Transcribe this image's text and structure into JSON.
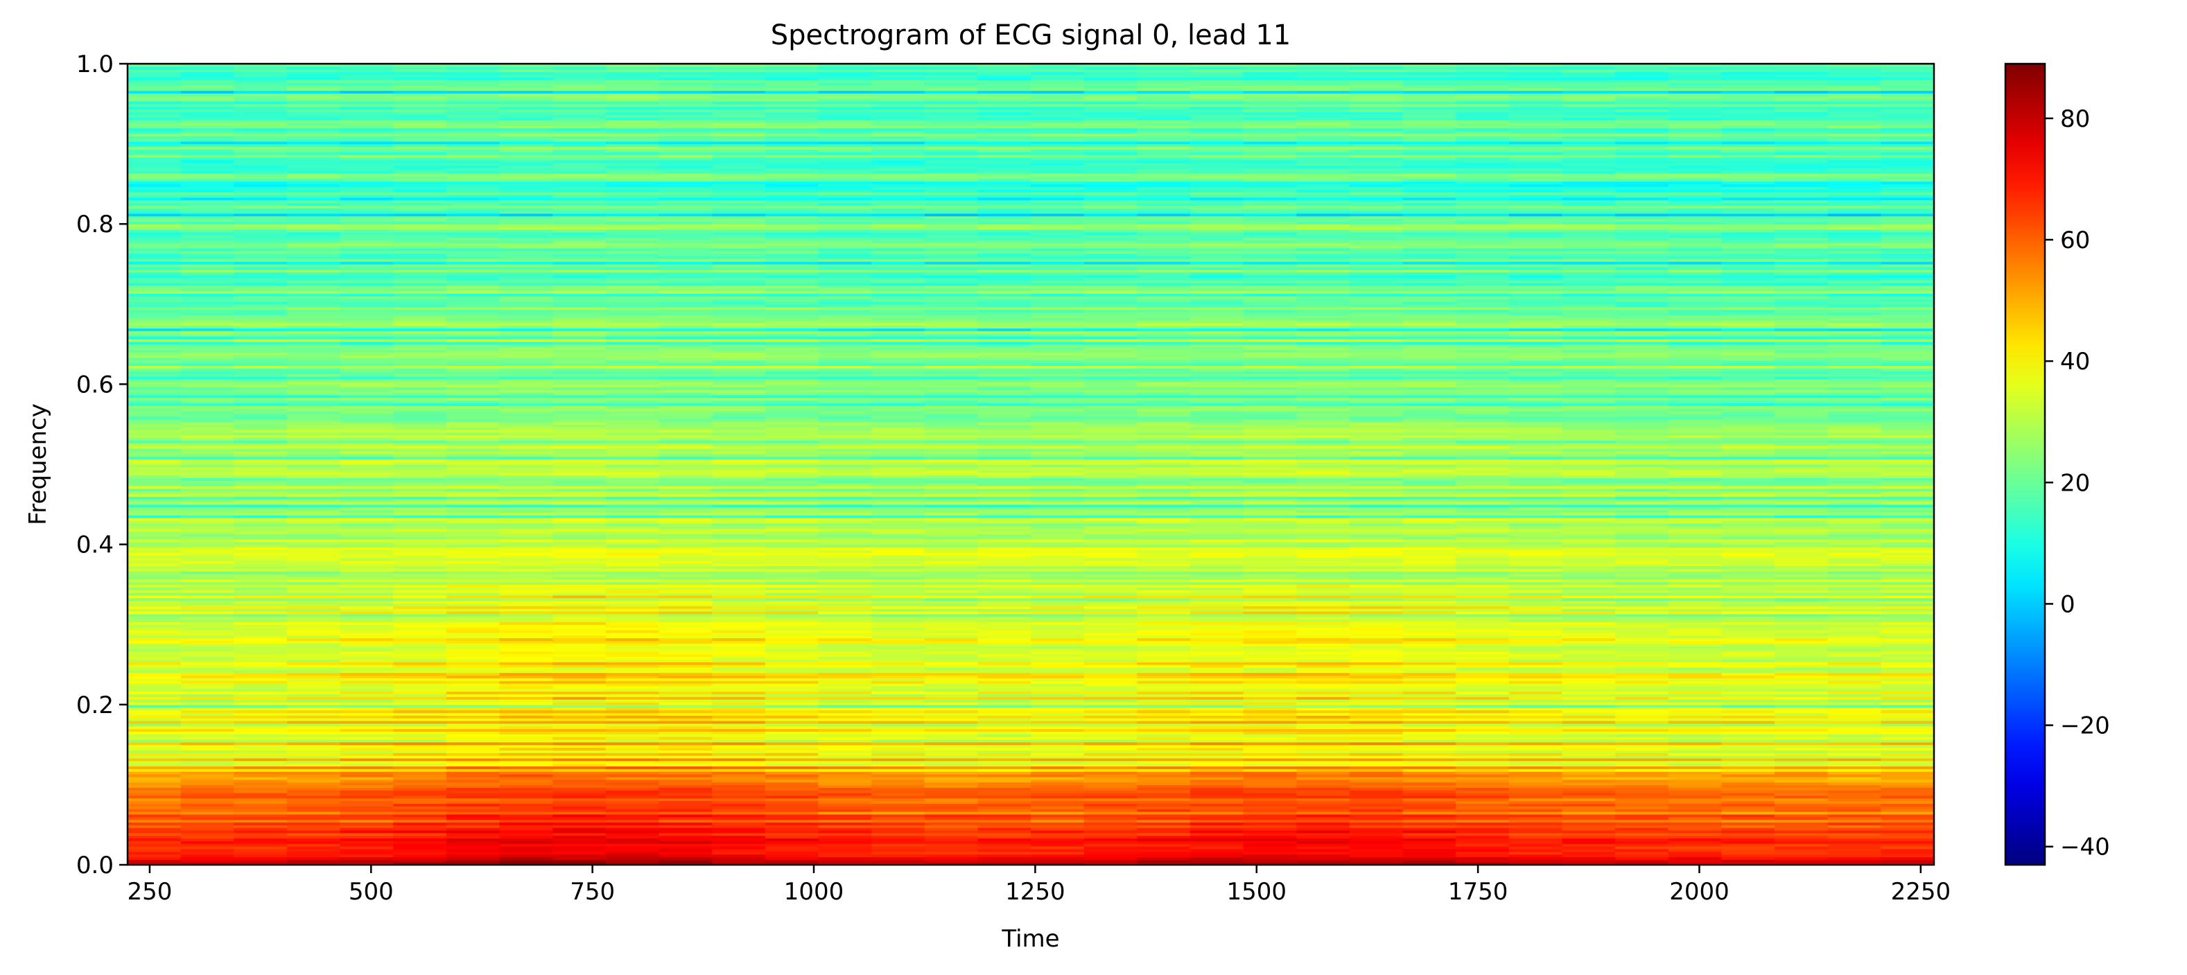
{
  "chart_data": {
    "type": "heatmap",
    "title": "Spectrogram of ECG signal 0, lead 11",
    "xlabel": "Time",
    "ylabel": "Frequency",
    "xlim": [
      225,
      2265
    ],
    "ylim": [
      0.0,
      1.0
    ],
    "x_ticks": [
      250,
      500,
      750,
      1000,
      1250,
      1500,
      1750,
      2000,
      2250
    ],
    "x_tick_labels": [
      "250",
      "500",
      "750",
      "1000",
      "1250",
      "1500",
      "1750",
      "2000",
      "2250"
    ],
    "y_ticks": [
      0.0,
      0.2,
      0.4,
      0.6,
      0.8,
      1.0
    ],
    "y_tick_labels": [
      "0.0",
      "0.2",
      "0.4",
      "0.6",
      "0.8",
      "1.0"
    ],
    "colorbar": {
      "colormap": "jet",
      "vmin": -43,
      "vmax": 89,
      "ticks": [
        -40,
        -20,
        0,
        20,
        40,
        60,
        80
      ],
      "tick_labels": [
        "−40",
        "−20",
        "0",
        "20",
        "40",
        "60",
        "80"
      ]
    },
    "frequency_profile": [
      {
        "f": 0.0,
        "level": 78
      },
      {
        "f": 0.01,
        "level": 70
      },
      {
        "f": 0.05,
        "level": 62
      },
      {
        "f": 0.1,
        "level": 55
      },
      {
        "f": 0.13,
        "level": 44
      },
      {
        "f": 0.2,
        "level": 37
      },
      {
        "f": 0.3,
        "level": 33
      },
      {
        "f": 0.4,
        "level": 29
      },
      {
        "f": 0.5,
        "level": 27
      },
      {
        "f": 0.6,
        "level": 24
      },
      {
        "f": 0.7,
        "level": 21
      },
      {
        "f": 0.8,
        "level": 19
      },
      {
        "f": 0.9,
        "level": 17
      },
      {
        "f": 1.0,
        "level": 15
      }
    ],
    "time_peaks": [
      {
        "t": 750,
        "boost": 8
      },
      {
        "t": 1550,
        "boost": 6
      }
    ]
  }
}
